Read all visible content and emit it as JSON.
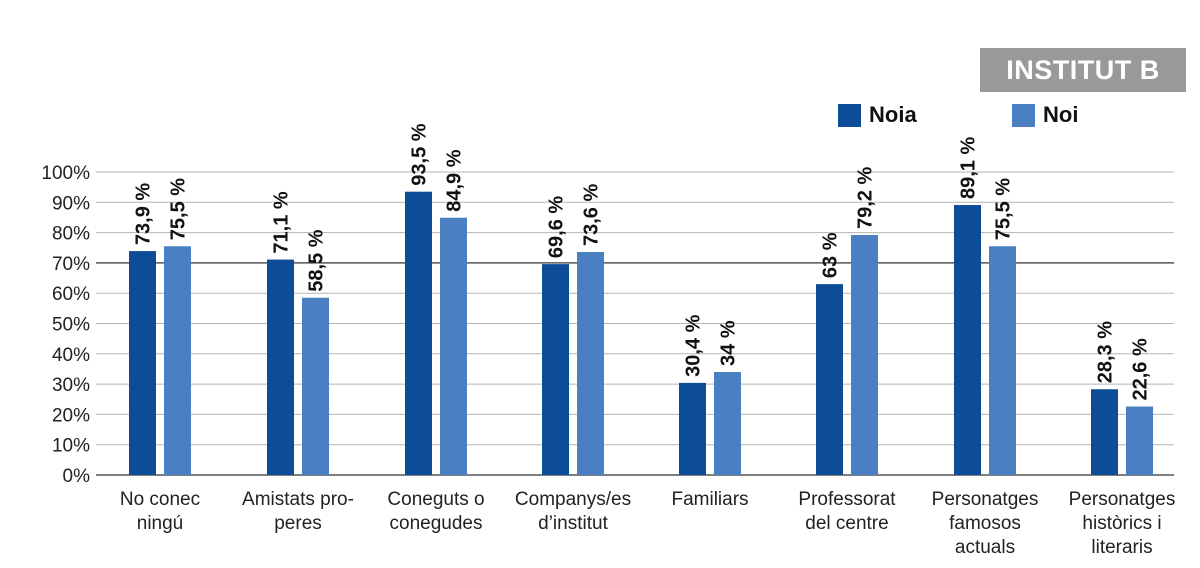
{
  "chart_data": {
    "type": "bar",
    "title": "INSTITUT B",
    "categories": [
      [
        "No conec",
        "ningú"
      ],
      [
        "Amistats pro-",
        "peres"
      ],
      [
        "Coneguts o",
        "conegudes"
      ],
      [
        "Companys/es",
        "d’institut"
      ],
      [
        "Familiars"
      ],
      [
        "Professorat",
        "del centre"
      ],
      [
        "Personatges",
        "famosos",
        "actuals"
      ],
      [
        "Personatges",
        "històrics i",
        "literaris"
      ]
    ],
    "series": [
      {
        "name": "Noia",
        "color": "#0d4c96",
        "values": [
          73.9,
          71.1,
          93.5,
          69.6,
          30.4,
          63,
          89.1,
          28.3
        ],
        "labels": [
          "73,9 %",
          "71,1 %",
          "93,5 %",
          "69,6 %",
          "30,4 %",
          "63 %",
          "89,1 %",
          "28,3 %"
        ]
      },
      {
        "name": "Noi",
        "color": "#4a80c1",
        "values": [
          75.5,
          58.5,
          84.9,
          73.6,
          34,
          79.2,
          75.5,
          22.6
        ],
        "labels": [
          "75,5 %",
          "58,5 %",
          "84,9 %",
          "73,6 %",
          "34 %",
          "79,2 %",
          "75,5 %",
          "22,6 %"
        ]
      }
    ],
    "y_ticks": [
      "0%",
      "10%",
      "20%",
      "30%",
      "40%",
      "50%",
      "60%",
      "70%",
      "80%",
      "90%",
      "100%"
    ],
    "ylim": [
      0,
      100
    ],
    "grid": true,
    "legend_position": "top-right"
  }
}
